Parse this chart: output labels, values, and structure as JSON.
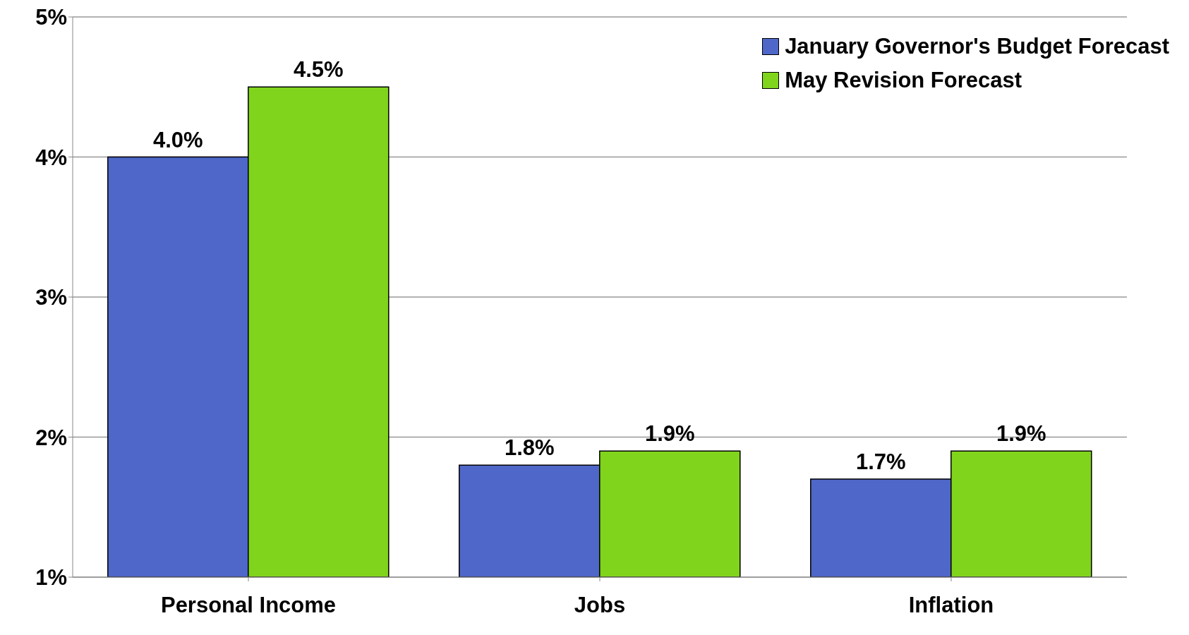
{
  "chart_data": {
    "type": "bar",
    "categories": [
      "Personal Income",
      "Jobs",
      "Inflation"
    ],
    "series": [
      {
        "name": "January Governor's Budget Forecast",
        "color": "#4f67c8",
        "values": [
          4.0,
          1.8,
          1.7
        ],
        "value_labels": [
          "4.0%",
          "1.8%",
          "1.7%"
        ]
      },
      {
        "name": "May Revision Forecast",
        "color": "#80d41c",
        "values": [
          4.5,
          1.9,
          1.9
        ],
        "value_labels": [
          "4.5%",
          "1.9%",
          "1.9%"
        ]
      }
    ],
    "ylim": [
      1,
      5
    ],
    "yticks": [
      {
        "value": 1,
        "label": "1%"
      },
      {
        "value": 2,
        "label": "2%"
      },
      {
        "value": 3,
        "label": "3%"
      },
      {
        "value": 4,
        "label": "4%"
      },
      {
        "value": 5,
        "label": "5%"
      }
    ],
    "grid": "y",
    "legend": "top right"
  }
}
